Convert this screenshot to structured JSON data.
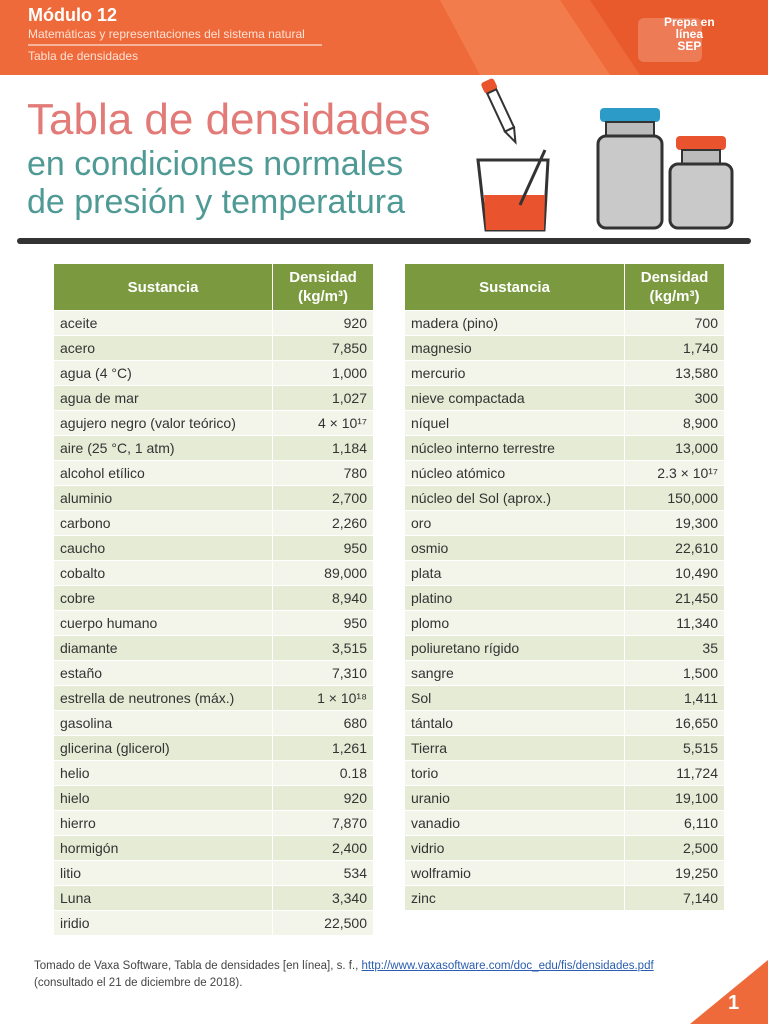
{
  "header": {
    "module": "Módulo 12",
    "course": "Matemáticas y representaciones del sistema natural",
    "section": "Tabla de densidades",
    "logo": [
      "Prepa en",
      "línea",
      "SEP"
    ]
  },
  "title": {
    "main": "Tabla de densidades",
    "sub": [
      "en condiciones normales",
      "de presión y temperatura"
    ]
  },
  "tables": [
    {
      "header": [
        "Sustancia",
        "Densidad",
        "(kg/m³)"
      ],
      "rows": [
        [
          "aceite",
          "920"
        ],
        [
          "acero",
          "7,850"
        ],
        [
          "agua (4 °C)",
          "1,000"
        ],
        [
          "agua de mar",
          "1,027"
        ],
        [
          "agujero negro (valor teórico)",
          "4 × 10¹⁷"
        ],
        [
          "aire (25 °C, 1 atm)",
          "1,184"
        ],
        [
          "alcohol etílico",
          "780"
        ],
        [
          "aluminio",
          "2,700"
        ],
        [
          "carbono",
          "2,260"
        ],
        [
          "caucho",
          "950"
        ],
        [
          "cobalto",
          "89,000"
        ],
        [
          "cobre",
          "8,940"
        ],
        [
          "cuerpo humano",
          "950"
        ],
        [
          "diamante",
          "3,515"
        ],
        [
          "estaño",
          "7,310"
        ],
        [
          "estrella de neutrones (máx.)",
          "1 × 10¹⁸"
        ],
        [
          "gasolina",
          "680"
        ],
        [
          "glicerina (glicerol)",
          "1,261"
        ],
        [
          "helio",
          "0.18"
        ],
        [
          "hielo",
          "920"
        ],
        [
          "hierro",
          "7,870"
        ],
        [
          "hormigón",
          "2,400"
        ],
        [
          "litio",
          "534"
        ],
        [
          "Luna",
          "3,340"
        ],
        [
          "iridio",
          "22,500"
        ]
      ]
    },
    {
      "header": [
        "Sustancia",
        "Densidad",
        "(kg/m³)"
      ],
      "rows": [
        [
          "madera (pino)",
          "700"
        ],
        [
          "magnesio",
          "1,740"
        ],
        [
          "mercurio",
          "13,580"
        ],
        [
          "nieve compactada",
          "300"
        ],
        [
          "níquel",
          "8,900"
        ],
        [
          "núcleo interno terrestre",
          "13,000"
        ],
        [
          "núcleo atómico",
          "2.3 × 10¹⁷"
        ],
        [
          "núcleo del Sol (aprox.)",
          "150,000"
        ],
        [
          "oro",
          "19,300"
        ],
        [
          "osmio",
          "22,610"
        ],
        [
          "plata",
          "10,490"
        ],
        [
          "platino",
          "21,450"
        ],
        [
          "plomo",
          "11,340"
        ],
        [
          "poliuretano rígido",
          "35"
        ],
        [
          "sangre",
          "1,500"
        ],
        [
          "Sol",
          "1,411"
        ],
        [
          "tántalo",
          "16,650"
        ],
        [
          "Tierra",
          "5,515"
        ],
        [
          "torio",
          "11,724"
        ],
        [
          "uranio",
          "19,100"
        ],
        [
          "vanadio",
          "6,110"
        ],
        [
          "vidrio",
          "2,500"
        ],
        [
          "wolframio",
          "19,250"
        ],
        [
          "zinc",
          "7,140"
        ]
      ]
    }
  ],
  "footer": {
    "source": "Tomado de Vaxa Software, Tabla de densidades [en línea], s. f., ",
    "link": "http://www.vaxasoftware.com/doc_edu/fis/densidades.pdf",
    "consulted": "(consultado el 21 de diciembre de 2018).",
    "page": "1"
  }
}
